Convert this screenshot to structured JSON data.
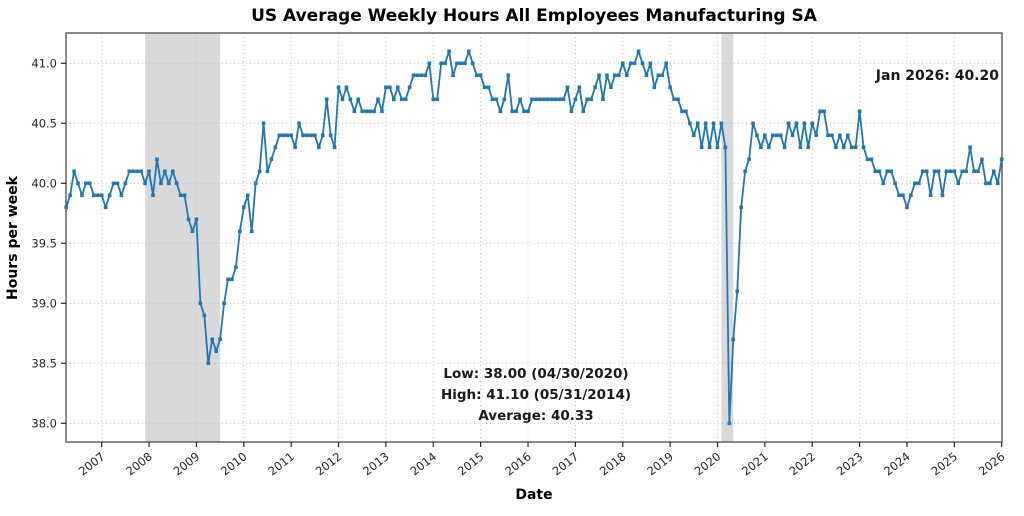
{
  "chart_data": {
    "type": "line",
    "title": "US Average Weekly Hours All Employees Manufacturing SA",
    "xlabel": "Date",
    "ylabel": "Hours per week",
    "legend": null,
    "grid": "dotted",
    "line_color": "#1f77b4",
    "band_color": "#d9d9d9",
    "x_start": "2006-04",
    "x_end": "2026-01",
    "freq": "monthly",
    "x_tick_labels": [
      "2007",
      "2008",
      "2009",
      "2010",
      "2011",
      "2012",
      "2013",
      "2014",
      "2015",
      "2016",
      "2017",
      "2018",
      "2019",
      "2020",
      "2021",
      "2022",
      "2023",
      "2024",
      "2025",
      "2026"
    ],
    "y_tick_labels": [
      "38.0",
      "38.5",
      "39.0",
      "39.5",
      "40.0",
      "40.5",
      "41.0"
    ],
    "yticks": [
      38.0,
      38.5,
      39.0,
      39.5,
      40.0,
      40.5,
      41.0
    ],
    "ylim": [
      37.84,
      41.25
    ],
    "xlim_yearfrac": [
      2006.25,
      2026.02
    ],
    "recession_bands": [
      {
        "name": "great-recession",
        "start_yearfrac": 2007.917,
        "end_yearfrac": 2009.5
      },
      {
        "name": "covid-recession",
        "start_yearfrac": 2020.083,
        "end_yearfrac": 2020.333
      }
    ],
    "series": [
      {
        "name": "US Average Weekly Hours All Employees Manufacturing SA",
        "values": [
          39.8,
          39.9,
          40.1,
          40.0,
          39.9,
          40.0,
          40.0,
          39.9,
          39.9,
          39.9,
          39.8,
          39.9,
          40.0,
          40.0,
          39.9,
          40.0,
          40.1,
          40.1,
          40.1,
          40.1,
          40.0,
          40.1,
          39.9,
          40.2,
          40.0,
          40.1,
          40.0,
          40.1,
          40.0,
          39.9,
          39.9,
          39.7,
          39.6,
          39.7,
          39.0,
          38.9,
          38.5,
          38.7,
          38.6,
          38.7,
          39.0,
          39.2,
          39.2,
          39.3,
          39.6,
          39.8,
          39.9,
          39.6,
          40.0,
          40.1,
          40.5,
          40.1,
          40.2,
          40.3,
          40.4,
          40.4,
          40.4,
          40.4,
          40.3,
          40.5,
          40.4,
          40.4,
          40.4,
          40.4,
          40.3,
          40.4,
          40.7,
          40.4,
          40.3,
          40.8,
          40.7,
          40.8,
          40.7,
          40.6,
          40.7,
          40.6,
          40.6,
          40.6,
          40.6,
          40.7,
          40.6,
          40.8,
          40.8,
          40.7,
          40.8,
          40.7,
          40.7,
          40.8,
          40.9,
          40.9,
          40.9,
          40.9,
          41.0,
          40.7,
          40.7,
          41.0,
          41.0,
          41.1,
          40.9,
          41.0,
          41.0,
          41.0,
          41.1,
          41.0,
          40.9,
          40.9,
          40.8,
          40.8,
          40.7,
          40.7,
          40.6,
          40.7,
          40.9,
          40.6,
          40.6,
          40.7,
          40.6,
          40.6,
          40.7,
          40.7,
          40.7,
          40.7,
          40.7,
          40.7,
          40.7,
          40.7,
          40.7,
          40.8,
          40.6,
          40.7,
          40.8,
          40.6,
          40.7,
          40.7,
          40.8,
          40.9,
          40.7,
          40.9,
          40.8,
          40.9,
          40.9,
          41.0,
          40.9,
          41.0,
          41.0,
          41.1,
          41.0,
          40.9,
          41.0,
          40.8,
          40.9,
          40.9,
          41.0,
          40.8,
          40.7,
          40.7,
          40.6,
          40.6,
          40.5,
          40.4,
          40.5,
          40.3,
          40.5,
          40.3,
          40.5,
          40.3,
          40.5,
          40.3,
          38.0,
          38.7,
          39.1,
          39.8,
          40.1,
          40.2,
          40.5,
          40.4,
          40.3,
          40.4,
          40.3,
          40.4,
          40.4,
          40.4,
          40.3,
          40.5,
          40.4,
          40.5,
          40.3,
          40.5,
          40.3,
          40.5,
          40.4,
          40.6,
          40.6,
          40.4,
          40.4,
          40.3,
          40.4,
          40.3,
          40.4,
          40.3,
          40.3,
          40.6,
          40.3,
          40.2,
          40.2,
          40.1,
          40.1,
          40.0,
          40.1,
          40.1,
          40.0,
          39.9,
          39.9,
          39.8,
          39.9,
          40.0,
          40.0,
          40.1,
          40.1,
          39.9,
          40.1,
          40.1,
          39.9,
          40.1,
          40.1,
          40.1,
          40.0,
          40.1,
          40.1,
          40.3,
          40.1,
          40.1,
          40.2,
          40.0,
          40.0,
          40.1,
          40.0,
          40.2
        ]
      }
    ],
    "annotations": {
      "latest": "Jan 2026: 40.20",
      "low": "Low: 38.00 (04/30/2020)",
      "high": "High: 41.10 (05/31/2014)",
      "average": "Average: 40.33"
    }
  }
}
